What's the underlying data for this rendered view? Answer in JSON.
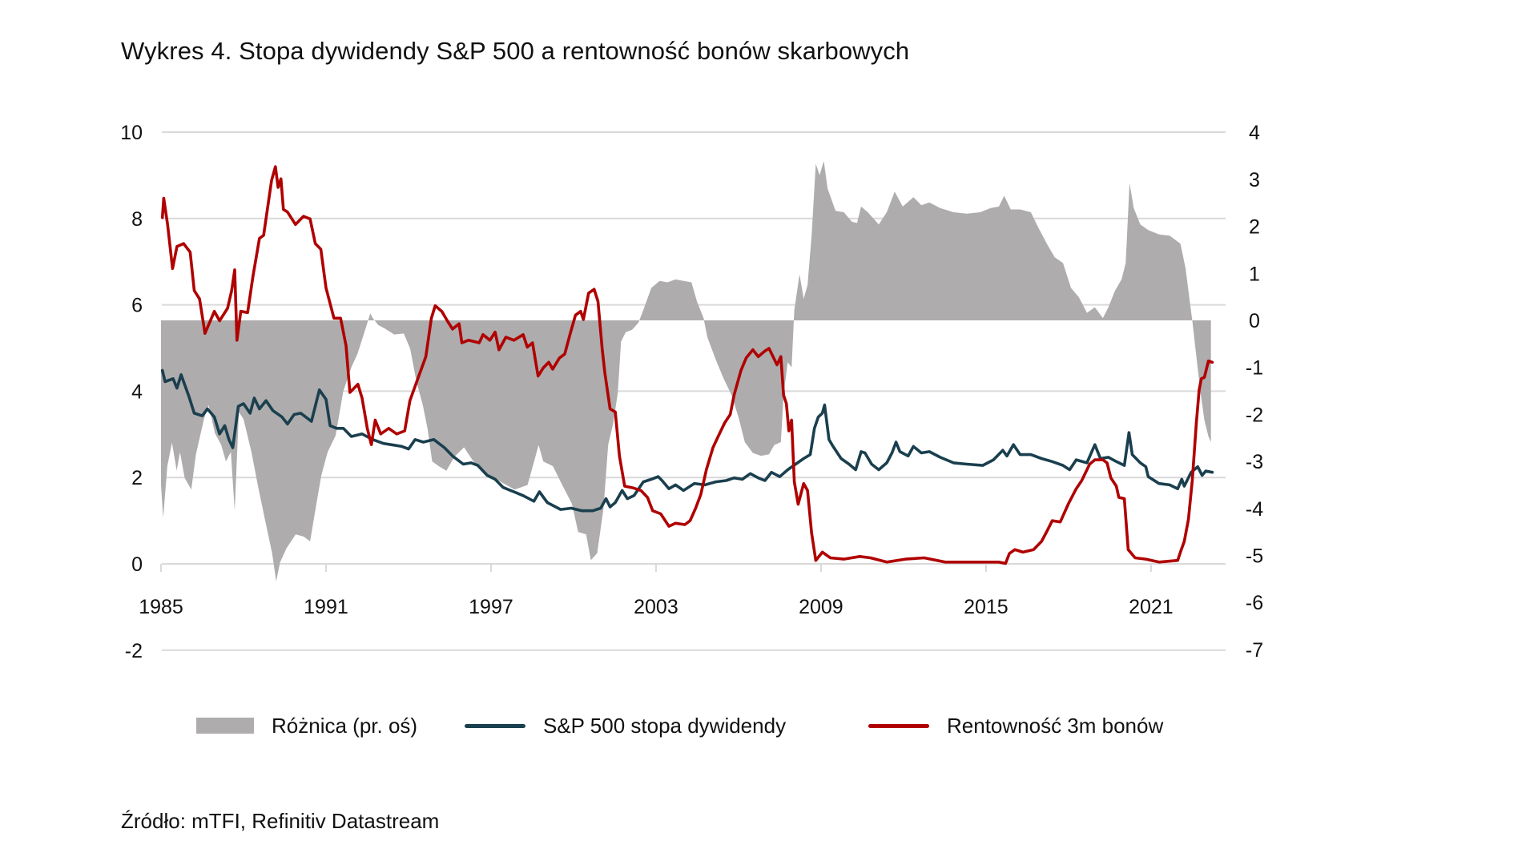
{
  "title": "Wykres 4. Stopa dywidendy S&P 500 a rentowność bonów skarbowych",
  "source": "Źródło: mTFI, Refinitiv Datastream",
  "colors": {
    "diff_area": "#AEACAD",
    "dividend_line": "#1A3F4E",
    "tbill_line": "#B00000",
    "grid": "#D9D9D9",
    "text": "#111111"
  },
  "legend": [
    {
      "label": "Różnica (pr. oś)",
      "type": "area",
      "series": "diff"
    },
    {
      "label": "S&P 500 stopa dywidendy",
      "type": "line",
      "series": "dividend"
    },
    {
      "label": "Rentowność 3m bonów",
      "type": "line",
      "series": "tbill"
    }
  ],
  "chart_data": {
    "type": "line",
    "title": "Wykres 4. Stopa dywidendy S&P 500 a rentowność bonów skarbowych",
    "xlabel": "",
    "ylabel": "",
    "xlim": [
      1985,
      2023.3
    ],
    "x_ticks": [
      "1985",
      "1991",
      "1997",
      "2003",
      "2009",
      "2015",
      "2021"
    ],
    "x_tick_values": [
      1985,
      1991,
      1997,
      2003,
      2009,
      2015,
      2021
    ],
    "ylim_left": [
      -2,
      10
    ],
    "y_ticks_left": [
      "10",
      "8",
      "6",
      "4",
      "2",
      "0",
      "-2"
    ],
    "y_tick_values_left": [
      10,
      8,
      6,
      4,
      2,
      0,
      -2
    ],
    "ylim_right": [
      -7,
      4
    ],
    "y_ticks_right": [
      "4",
      "3",
      "2",
      "1",
      "0",
      "-1",
      "-2",
      "-3",
      "-4",
      "-5",
      "-6",
      "-7"
    ],
    "y_tick_values_right": [
      4,
      3,
      2,
      1,
      0,
      -1,
      -2,
      -3,
      -4,
      -5,
      -6,
      -7
    ],
    "grid": true,
    "legend_position": "bottom",
    "series": [
      {
        "name": "Różnica (pr. oś)",
        "key": "diff",
        "type": "area",
        "axis": "right",
        "x": [
          1985.0,
          1985.08,
          1985.23,
          1985.4,
          1985.57,
          1985.69,
          1985.86,
          1986.1,
          1986.27,
          1986.56,
          1986.73,
          1986.96,
          1987.19,
          1987.36,
          1987.54,
          1987.68,
          1987.83,
          1988.0,
          1988.29,
          1988.52,
          1988.75,
          1989.04,
          1989.19,
          1989.33,
          1989.56,
          1989.9,
          1990.19,
          1990.42,
          1990.65,
          1990.83,
          1991.06,
          1991.35,
          1991.63,
          1991.92,
          1992.15,
          1992.44,
          1992.61,
          1992.7,
          1992.9,
          1993.13,
          1993.48,
          1993.83,
          1994.06,
          1994.29,
          1994.52,
          1994.69,
          1994.86,
          1995.1,
          1995.38,
          1995.67,
          1996.02,
          1996.36,
          1996.82,
          1997.4,
          1997.86,
          1998.33,
          1998.73,
          1998.9,
          1999.25,
          1999.59,
          1999.94,
          2000.17,
          2000.46,
          2000.63,
          2000.86,
          2001.09,
          2001.26,
          2001.44,
          2001.61,
          2001.73,
          2001.9,
          2002.13,
          2002.36,
          2002.54,
          2002.83,
          2003.13,
          2003.42,
          2003.71,
          2004.0,
          2004.29,
          2004.49,
          2004.73,
          2004.87,
          2005.17,
          2005.46,
          2005.75,
          2006.0,
          2006.23,
          2006.52,
          2006.82,
          2007.11,
          2007.3,
          2007.54,
          2007.64,
          2007.79,
          2007.93,
          2008.03,
          2008.22,
          2008.37,
          2008.51,
          2008.66,
          2008.81,
          2008.95,
          2009.1,
          2009.24,
          2009.53,
          2009.83,
          2010.12,
          2010.31,
          2010.46,
          2010.7,
          2011.1,
          2011.39,
          2011.68,
          2011.97,
          2012.36,
          2012.65,
          2012.94,
          2013.33,
          2013.82,
          2014.3,
          2014.79,
          2015.17,
          2015.47,
          2015.66,
          2015.9,
          2016.24,
          2016.63,
          2016.87,
          2017.21,
          2017.5,
          2017.8,
          2018.09,
          2018.38,
          2018.67,
          2018.96,
          2019.25,
          2019.45,
          2019.69,
          2019.93,
          2020.08,
          2020.22,
          2020.37,
          2020.61,
          2020.9,
          2021.29,
          2021.68,
          2022.07,
          2022.26,
          2022.41,
          2022.5,
          2022.65,
          2022.79,
          2022.94,
          2023.09,
          2023.18
        ],
        "y": [
          -3.5,
          -4.2,
          -3.1,
          -2.6,
          -3.2,
          -2.8,
          -3.35,
          -3.6,
          -2.85,
          -2.1,
          -1.8,
          -2.4,
          -2.65,
          -3.0,
          -2.8,
          -4.05,
          -1.95,
          -2.1,
          -2.8,
          -3.5,
          -4.15,
          -4.95,
          -5.55,
          -5.15,
          -4.85,
          -4.55,
          -4.6,
          -4.7,
          -3.9,
          -3.3,
          -2.8,
          -2.45,
          -1.5,
          -1.0,
          -0.7,
          -0.17,
          0.15,
          0.05,
          -0.1,
          -0.17,
          -0.3,
          -0.28,
          -0.6,
          -1.3,
          -1.8,
          -2.3,
          -3.0,
          -3.1,
          -3.2,
          -2.9,
          -2.7,
          -3.0,
          -3.25,
          -3.45,
          -3.6,
          -3.5,
          -2.65,
          -3.0,
          -3.1,
          -3.5,
          -3.9,
          -4.5,
          -4.55,
          -5.1,
          -4.95,
          -4.0,
          -2.65,
          -2.2,
          -1.55,
          -0.45,
          -0.25,
          -0.2,
          -0.05,
          0.22,
          0.69,
          0.84,
          0.81,
          0.87,
          0.84,
          0.81,
          0.4,
          0.05,
          -0.36,
          -0.83,
          -1.24,
          -1.59,
          -2.06,
          -2.59,
          -2.82,
          -2.88,
          -2.85,
          -2.65,
          -2.59,
          -1.59,
          -0.89,
          -1.0,
          0.22,
          0.98,
          0.46,
          0.75,
          1.8,
          3.33,
          3.09,
          3.39,
          2.8,
          2.33,
          2.3,
          2.1,
          2.07,
          2.42,
          2.3,
          2.04,
          2.3,
          2.74,
          2.42,
          2.62,
          2.45,
          2.51,
          2.39,
          2.3,
          2.27,
          2.3,
          2.39,
          2.42,
          2.65,
          2.36,
          2.36,
          2.3,
          2.01,
          1.63,
          1.34,
          1.22,
          0.69,
          0.49,
          0.16,
          0.28,
          0.05,
          0.28,
          0.63,
          0.87,
          1.22,
          2.92,
          2.39,
          2.04,
          1.92,
          1.83,
          1.8,
          1.63,
          1.1,
          0.4,
          0.0,
          -0.77,
          -1.48,
          -2.12,
          -2.47,
          -2.59
        ]
      },
      {
        "name": "S&P 500 stopa dywidendy",
        "key": "dividend",
        "type": "line",
        "axis": "left",
        "x": [
          1985.05,
          1985.15,
          1985.44,
          1985.58,
          1985.73,
          1986.02,
          1986.21,
          1986.5,
          1986.69,
          1986.94,
          1987.13,
          1987.32,
          1987.47,
          1987.61,
          1987.81,
          1988.0,
          1988.24,
          1988.39,
          1988.58,
          1988.82,
          1989.07,
          1989.4,
          1989.6,
          1989.84,
          1990.08,
          1990.47,
          1990.76,
          1991.0,
          1991.15,
          1991.39,
          1991.63,
          1991.92,
          1992.31,
          1992.7,
          1993.08,
          1993.37,
          1993.76,
          1994.0,
          1994.24,
          1994.54,
          1994.92,
          1995.31,
          1995.6,
          1995.99,
          1996.28,
          1996.52,
          1996.86,
          1997.15,
          1997.44,
          1997.83,
          1998.17,
          1998.56,
          1998.76,
          1999.05,
          1999.53,
          1999.92,
          2000.31,
          2000.7,
          2000.99,
          2001.18,
          2001.33,
          2001.52,
          2001.77,
          2001.96,
          2002.2,
          2002.54,
          2002.83,
          2003.08,
          2003.22,
          2003.47,
          2003.71,
          2004.0,
          2004.39,
          2004.78,
          2005.17,
          2005.55,
          2005.84,
          2006.14,
          2006.43,
          2006.72,
          2006.96,
          2007.2,
          2007.5,
          2007.79,
          2008.08,
          2008.37,
          2008.61,
          2008.76,
          2008.9,
          2009.05,
          2009.13,
          2009.29,
          2009.44,
          2009.73,
          2010.02,
          2010.26,
          2010.46,
          2010.6,
          2010.84,
          2011.1,
          2011.39,
          2011.58,
          2011.73,
          2011.87,
          2012.17,
          2012.36,
          2012.65,
          2012.94,
          2013.33,
          2013.82,
          2014.3,
          2014.88,
          2015.27,
          2015.61,
          2015.76,
          2016.0,
          2016.24,
          2016.63,
          2017.02,
          2017.41,
          2017.8,
          2018.04,
          2018.28,
          2018.67,
          2018.96,
          2019.16,
          2019.45,
          2019.74,
          2020.03,
          2020.2,
          2020.32,
          2020.61,
          2020.81,
          2020.9,
          2021.29,
          2021.68,
          2021.97,
          2022.12,
          2022.21,
          2022.46,
          2022.7,
          2022.86,
          2022.99,
          2023.23
        ],
        "y": [
          4.48,
          4.22,
          4.29,
          4.07,
          4.38,
          3.87,
          3.49,
          3.43,
          3.59,
          3.4,
          3.01,
          3.2,
          2.88,
          2.69,
          3.65,
          3.71,
          3.49,
          3.84,
          3.59,
          3.78,
          3.55,
          3.4,
          3.24,
          3.46,
          3.49,
          3.3,
          4.03,
          3.81,
          3.2,
          3.14,
          3.14,
          2.95,
          3.01,
          2.88,
          2.79,
          2.76,
          2.72,
          2.66,
          2.88,
          2.82,
          2.88,
          2.69,
          2.5,
          2.31,
          2.34,
          2.28,
          2.05,
          1.96,
          1.77,
          1.67,
          1.58,
          1.45,
          1.67,
          1.42,
          1.26,
          1.29,
          1.23,
          1.23,
          1.29,
          1.51,
          1.32,
          1.42,
          1.7,
          1.51,
          1.58,
          1.9,
          1.96,
          2.02,
          1.93,
          1.74,
          1.83,
          1.7,
          1.86,
          1.83,
          1.9,
          1.93,
          1.99,
          1.96,
          2.09,
          1.99,
          1.93,
          2.12,
          2.02,
          2.18,
          2.31,
          2.44,
          2.53,
          3.14,
          3.4,
          3.49,
          3.68,
          2.88,
          2.72,
          2.44,
          2.31,
          2.18,
          2.6,
          2.57,
          2.31,
          2.18,
          2.34,
          2.57,
          2.82,
          2.6,
          2.5,
          2.72,
          2.57,
          2.6,
          2.47,
          2.34,
          2.31,
          2.28,
          2.41,
          2.63,
          2.5,
          2.76,
          2.53,
          2.53,
          2.44,
          2.37,
          2.28,
          2.18,
          2.41,
          2.34,
          2.76,
          2.44,
          2.47,
          2.37,
          2.28,
          3.04,
          2.53,
          2.34,
          2.25,
          2.02,
          1.86,
          1.83,
          1.74,
          1.96,
          1.8,
          2.12,
          2.25,
          2.05,
          2.15,
          2.12
        ]
      },
      {
        "name": "Rentowność 3m bonów",
        "key": "tbill",
        "type": "line",
        "axis": "left",
        "x": [
          1985.05,
          1985.1,
          1985.24,
          1985.42,
          1985.58,
          1985.82,
          1986.06,
          1986.21,
          1986.4,
          1986.6,
          1986.94,
          1987.13,
          1987.42,
          1987.57,
          1987.68,
          1987.76,
          1987.9,
          1988.15,
          1988.34,
          1988.58,
          1988.73,
          1989.02,
          1989.16,
          1989.26,
          1989.36,
          1989.45,
          1989.6,
          1989.89,
          1990.18,
          1990.42,
          1990.61,
          1990.81,
          1991.0,
          1991.29,
          1991.53,
          1991.73,
          1991.87,
          1992.16,
          1992.31,
          1992.5,
          1992.65,
          1992.79,
          1992.99,
          1993.28,
          1993.57,
          1993.86,
          1994.05,
          1994.34,
          1994.63,
          1994.83,
          1994.97,
          1995.21,
          1995.41,
          1995.6,
          1995.84,
          1995.94,
          1996.18,
          1996.57,
          1996.71,
          1996.96,
          1997.15,
          1997.29,
          1997.54,
          1997.83,
          1998.17,
          1998.32,
          1998.51,
          1998.71,
          1998.9,
          1999.1,
          1999.24,
          1999.49,
          1999.68,
          1999.87,
          2000.07,
          2000.26,
          2000.36,
          2000.55,
          2000.75,
          2000.89,
          2001.04,
          2001.14,
          2001.33,
          2001.52,
          2001.67,
          2001.86,
          2002.16,
          2002.45,
          2002.69,
          2002.88,
          2003.17,
          2003.47,
          2003.71,
          2004.05,
          2004.24,
          2004.44,
          2004.63,
          2004.83,
          2005.07,
          2005.26,
          2005.5,
          2005.7,
          2005.84,
          2006.09,
          2006.28,
          2006.52,
          2006.72,
          2006.96,
          2007.11,
          2007.4,
          2007.54,
          2007.64,
          2007.74,
          2007.83,
          2007.93,
          2008.03,
          2008.17,
          2008.37,
          2008.51,
          2008.66,
          2008.81,
          2009.05,
          2009.34,
          2009.83,
          2010.41,
          2010.8,
          2011.39,
          2012.07,
          2012.75,
          2013.52,
          2014.5,
          2015.47,
          2015.71,
          2015.85,
          2016.05,
          2016.34,
          2016.73,
          2017.02,
          2017.21,
          2017.41,
          2017.7,
          2017.99,
          2018.28,
          2018.48,
          2018.77,
          2018.96,
          2019.25,
          2019.4,
          2019.54,
          2019.74,
          2019.83,
          2020.03,
          2020.17,
          2020.42,
          2020.81,
          2021.29,
          2021.97,
          2022.07,
          2022.21,
          2022.36,
          2022.5,
          2022.65,
          2022.75,
          2022.83,
          2022.94,
          2023.09,
          2023.23
        ],
        "y": [
          8.02,
          8.47,
          7.86,
          6.84,
          7.35,
          7.42,
          7.22,
          6.33,
          6.14,
          5.34,
          5.85,
          5.63,
          5.92,
          6.33,
          6.81,
          5.18,
          5.85,
          5.82,
          6.65,
          7.54,
          7.61,
          8.88,
          9.2,
          8.72,
          8.92,
          8.21,
          8.15,
          7.86,
          8.05,
          7.99,
          7.42,
          7.29,
          6.39,
          5.69,
          5.69,
          5.05,
          3.97,
          4.16,
          3.84,
          3.14,
          2.76,
          3.33,
          3.01,
          3.14,
          3.01,
          3.08,
          3.78,
          4.29,
          4.8,
          5.69,
          5.98,
          5.85,
          5.63,
          5.44,
          5.56,
          5.12,
          5.18,
          5.12,
          5.31,
          5.18,
          5.37,
          4.96,
          5.25,
          5.18,
          5.31,
          5.02,
          5.12,
          4.35,
          4.54,
          4.67,
          4.51,
          4.77,
          4.86,
          5.31,
          5.76,
          5.85,
          5.66,
          6.27,
          6.36,
          6.08,
          4.99,
          4.42,
          3.59,
          3.52,
          2.5,
          1.8,
          1.76,
          1.7,
          1.54,
          1.23,
          1.16,
          0.87,
          0.94,
          0.91,
          1.0,
          1.29,
          1.61,
          2.18,
          2.69,
          2.95,
          3.27,
          3.46,
          3.91,
          4.48,
          4.77,
          4.96,
          4.8,
          4.93,
          4.99,
          4.61,
          4.8,
          3.91,
          3.71,
          3.08,
          3.33,
          1.9,
          1.38,
          1.86,
          1.7,
          0.71,
          0.08,
          0.27,
          0.14,
          0.11,
          0.17,
          0.14,
          0.04,
          0.11,
          0.14,
          0.04,
          0.04,
          0.04,
          0.01,
          0.24,
          0.33,
          0.27,
          0.33,
          0.52,
          0.75,
          1.0,
          0.97,
          1.38,
          1.74,
          1.93,
          2.31,
          2.41,
          2.41,
          2.34,
          1.99,
          1.8,
          1.54,
          1.51,
          0.33,
          0.14,
          0.11,
          0.04,
          0.08,
          0.27,
          0.52,
          1.03,
          1.93,
          3.27,
          4.03,
          4.29,
          4.32,
          4.7,
          4.67
        ]
      }
    ]
  }
}
